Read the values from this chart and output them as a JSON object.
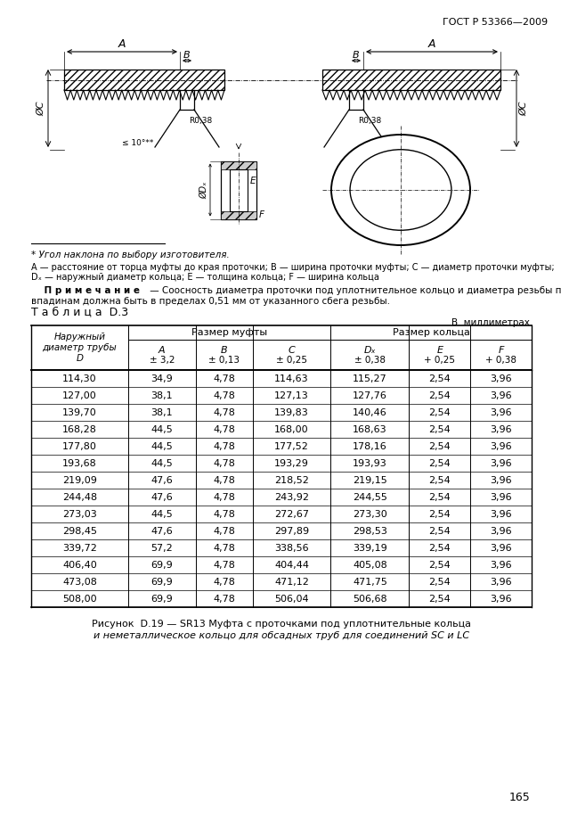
{
  "title_header": "ГОСТ Р 53366—2009",
  "page_number": "165",
  "footnote_star": "* Угол наклона по выбору изготовителя.",
  "legend_line": "A — расстояние от торца муфты до края проточки; B — ширина проточки муфты; C — диаметр проточки муфты;",
  "legend_line2": "Dₓ — наружный диаметр кольца; E — толщина кольца; F — ширина кольца",
  "note_label": "П р и м е ч а н и е",
  "note_text": " — Соосность диаметра проточки под уплотнительное кольцо и диаметра резьбы по",
  "note_text2": "впадинам должна быть в пределах 0,51 мм от указанного сбега резьбы.",
  "table_title": "Т а б л и ц а  D.3",
  "units_label": "В  миллиметрах",
  "col_header_group1": "Размер муфты",
  "col_header_group2": "Размер кольца",
  "col0_line1": "Наружный",
  "col0_line2": "диаметр трубы",
  "col0_line3": "D",
  "col_A": "A",
  "col_A_tol": "± 3,2",
  "col_B": "B",
  "col_B_tol": "± 0,13",
  "col_C": "C",
  "col_C_tol": "± 0,25",
  "col_Dx": "Dₓ",
  "col_Dx_tol": "± 0,38",
  "col_E": "E",
  "col_E_tol": "+ 0,25",
  "col_F": "F",
  "col_F_tol": "+ 0,38",
  "table_data": [
    [
      "114,30",
      "34,9",
      "4,78",
      "114,63",
      "115,27",
      "2,54",
      "3,96"
    ],
    [
      "127,00",
      "38,1",
      "4,78",
      "127,13",
      "127,76",
      "2,54",
      "3,96"
    ],
    [
      "139,70",
      "38,1",
      "4,78",
      "139,83",
      "140,46",
      "2,54",
      "3,96"
    ],
    [
      "168,28",
      "44,5",
      "4,78",
      "168,00",
      "168,63",
      "2,54",
      "3,96"
    ],
    [
      "177,80",
      "44,5",
      "4,78",
      "177,52",
      "178,16",
      "2,54",
      "3,96"
    ],
    [
      "193,68",
      "44,5",
      "4,78",
      "193,29",
      "193,93",
      "2,54",
      "3,96"
    ],
    [
      "219,09",
      "47,6",
      "4,78",
      "218,52",
      "219,15",
      "2,54",
      "3,96"
    ],
    [
      "244,48",
      "47,6",
      "4,78",
      "243,92",
      "244,55",
      "2,54",
      "3,96"
    ],
    [
      "273,03",
      "44,5",
      "4,78",
      "272,67",
      "273,30",
      "2,54",
      "3,96"
    ],
    [
      "298,45",
      "47,6",
      "4,78",
      "297,89",
      "298,53",
      "2,54",
      "3,96"
    ],
    [
      "339,72",
      "57,2",
      "4,78",
      "338,56",
      "339,19",
      "2,54",
      "3,96"
    ],
    [
      "406,40",
      "69,9",
      "4,78",
      "404,44",
      "405,08",
      "2,54",
      "3,96"
    ],
    [
      "473,08",
      "69,9",
      "4,78",
      "471,12",
      "471,75",
      "2,54",
      "3,96"
    ],
    [
      "508,00",
      "69,9",
      "4,78",
      "506,04",
      "506,68",
      "2,54",
      "3,96"
    ]
  ],
  "figure_caption_line1": "Рисунок  D.19 — SR13 Муфта с проточками под уплотнительные кольца",
  "figure_caption_line2": "и неметаллическое кольцо для обсадных труб для соединений SC и LC",
  "bg_color": "#ffffff"
}
